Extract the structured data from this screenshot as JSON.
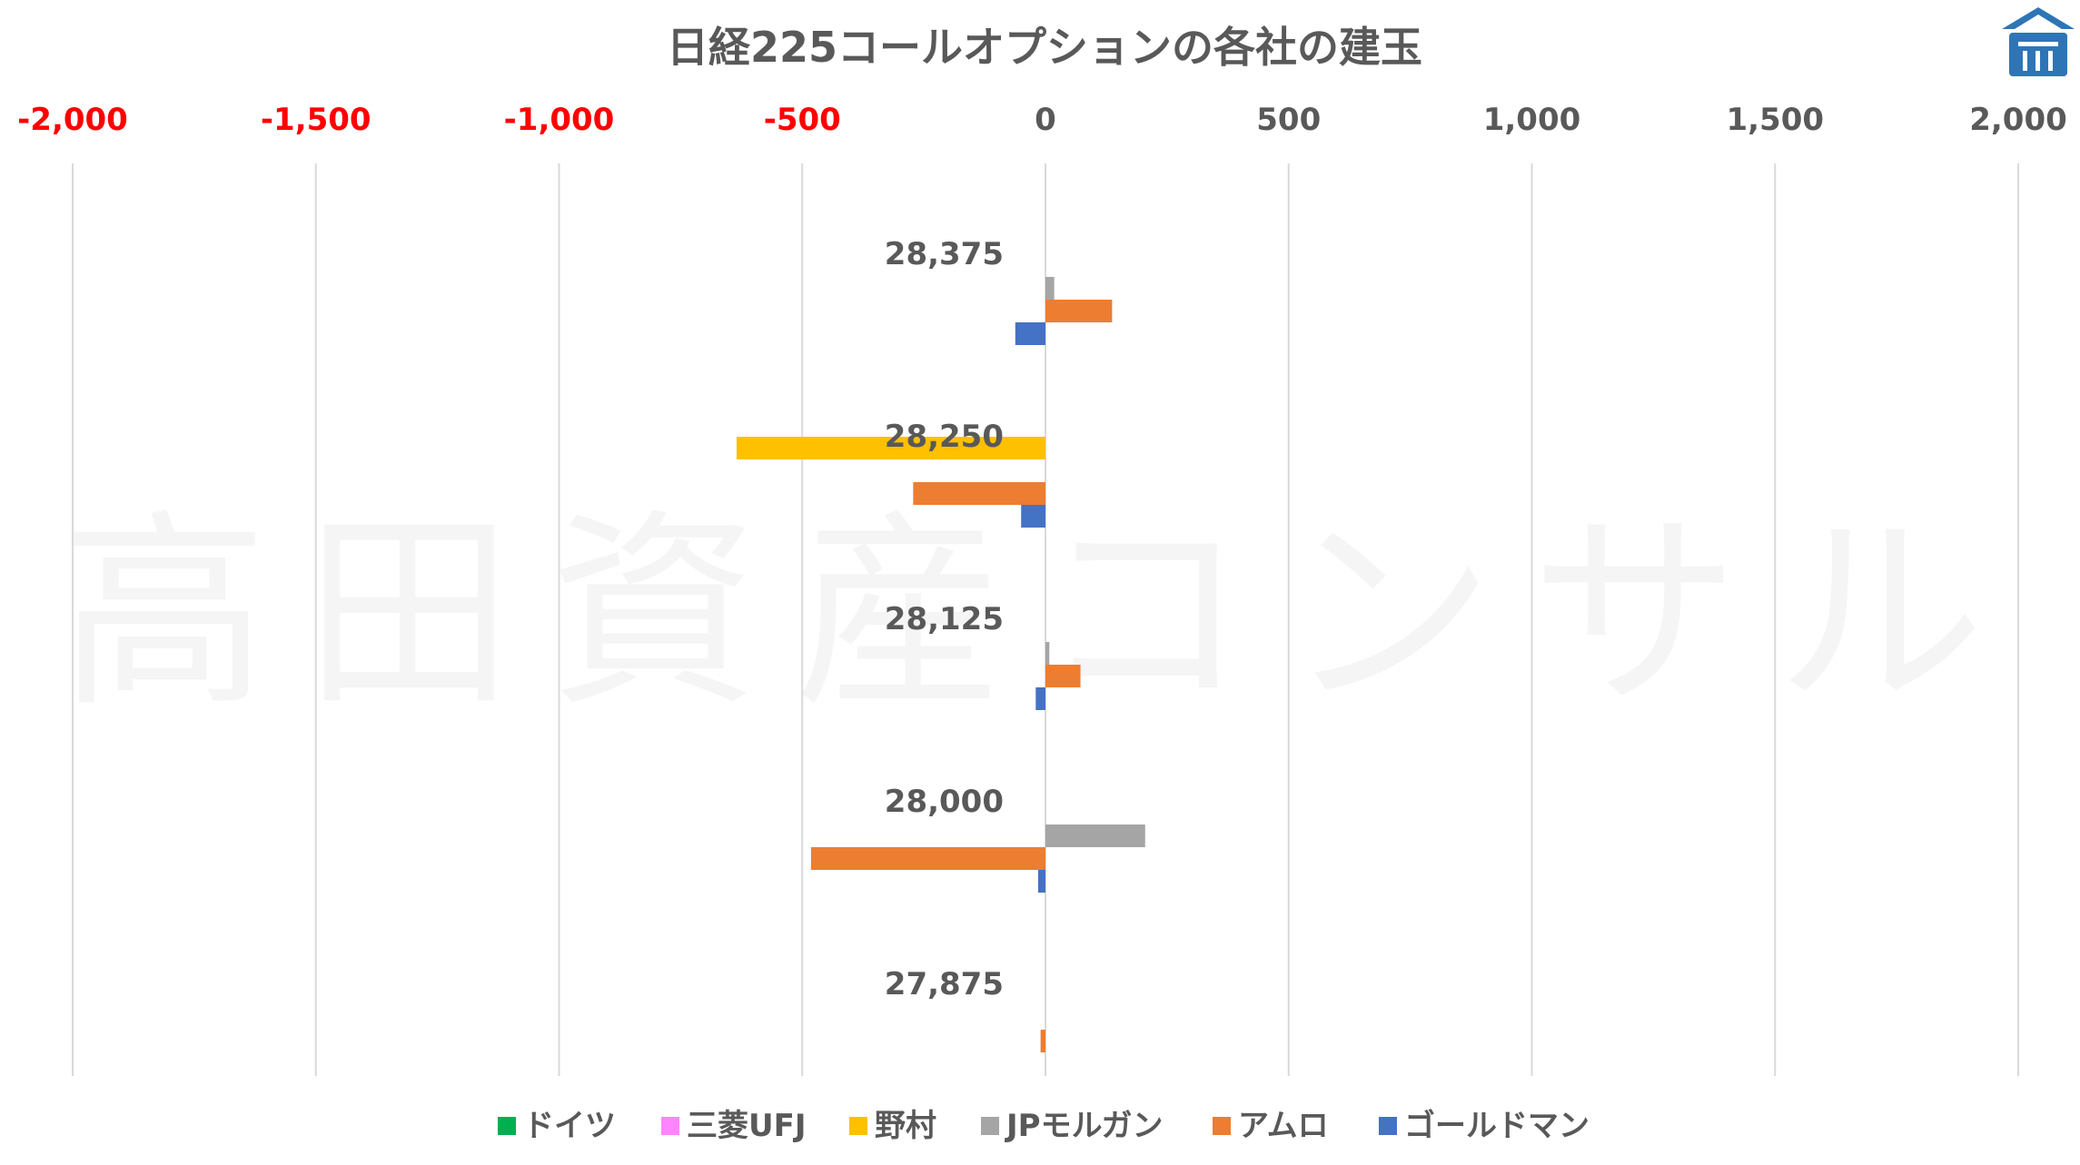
{
  "chart_data": {
    "type": "bar",
    "orientation": "horizontal",
    "title": "日経225コールオプションの各社の建玉",
    "watermark": "高田資産コンサル",
    "xlim": [
      -2000,
      2000
    ],
    "x_ticks": [
      -2000,
      -1500,
      -1000,
      -500,
      0,
      500,
      1000,
      1500,
      2000
    ],
    "x_tick_labels": [
      "-2,000",
      "-1,500",
      "-1,000",
      "-500",
      "0",
      "500",
      "1,000",
      "1,500",
      "2,000"
    ],
    "negative_tick_color": "#FF0000",
    "positive_tick_color": "#595959",
    "categories": [
      "28,375",
      "28,250",
      "28,125",
      "28,000",
      "27,875"
    ],
    "series": [
      {
        "name": "ドイツ",
        "color": "#00B050",
        "values": [
          0,
          0,
          0,
          0,
          0
        ]
      },
      {
        "name": "三菱UFJ",
        "color": "#FF85FF",
        "values": [
          0,
          0,
          0,
          0,
          0
        ]
      },
      {
        "name": "野村",
        "color": "#FFC000",
        "values": [
          0,
          -635,
          0,
          0,
          0
        ]
      },
      {
        "name": "JPモルガン",
        "color": "#A5A5A5",
        "values": [
          18,
          0,
          8,
          205,
          0
        ]
      },
      {
        "name": "アムロ",
        "color": "#ED7D31",
        "values": [
          137,
          -272,
          72,
          -482,
          -10
        ]
      },
      {
        "name": "ゴールドマン",
        "color": "#4472C4",
        "values": [
          -62,
          -50,
          -20,
          -15,
          0
        ]
      }
    ],
    "grid": "vertical",
    "legend": "bottom"
  },
  "logo": {
    "name": "logo-icon",
    "color": "#2E75B6"
  }
}
